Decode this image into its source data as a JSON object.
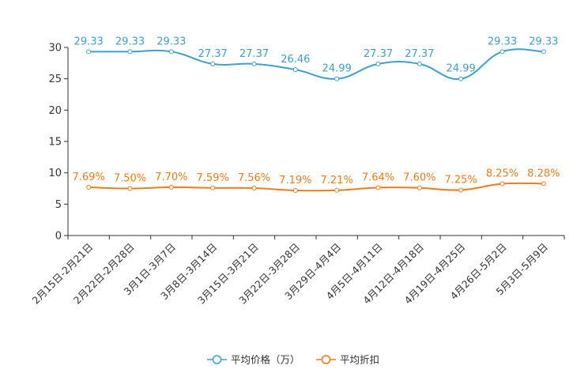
{
  "chart_data": {
    "type": "line",
    "title": "",
    "categories": [
      "2月15日-2月21日",
      "2月22日-2月28日",
      "3月1日-3月7日",
      "3月8日-3月14日",
      "3月15日-3月21日",
      "3月22日-3月28日",
      "3月29日-4月4日",
      "4月5日-4月11日",
      "4月12日-4月18日",
      "4月19日-4月25日",
      "4月26日-5月2日",
      "5月3日-5月9日"
    ],
    "ylim": [
      0,
      30
    ],
    "yticks": [
      0,
      5,
      10,
      15,
      20,
      25,
      30
    ],
    "grid": false,
    "legend_position": "bottom",
    "series": [
      {
        "name": "平均价格（万）",
        "color": "#3e9fce",
        "values": [
          29.33,
          29.33,
          29.33,
          27.37,
          27.37,
          26.46,
          24.99,
          27.37,
          27.37,
          24.99,
          29.33,
          29.33
        ],
        "labels": [
          "29.33",
          "29.33",
          "29.33",
          "27.37",
          "27.37",
          "26.46",
          "24.99",
          "27.37",
          "27.37",
          "24.99",
          "29.33",
          "29.33"
        ]
      },
      {
        "name": "平均折扣",
        "color": "#f07a1a",
        "values": [
          7.69,
          7.5,
          7.7,
          7.59,
          7.56,
          7.19,
          7.21,
          7.64,
          7.6,
          7.25,
          8.25,
          8.28
        ],
        "labels": [
          "7.69%",
          "7.50%",
          "7.70%",
          "7.59%",
          "7.56%",
          "7.19%",
          "7.21%",
          "7.64%",
          "7.60%",
          "7.25%",
          "8.25%",
          "8.28%"
        ]
      }
    ]
  }
}
